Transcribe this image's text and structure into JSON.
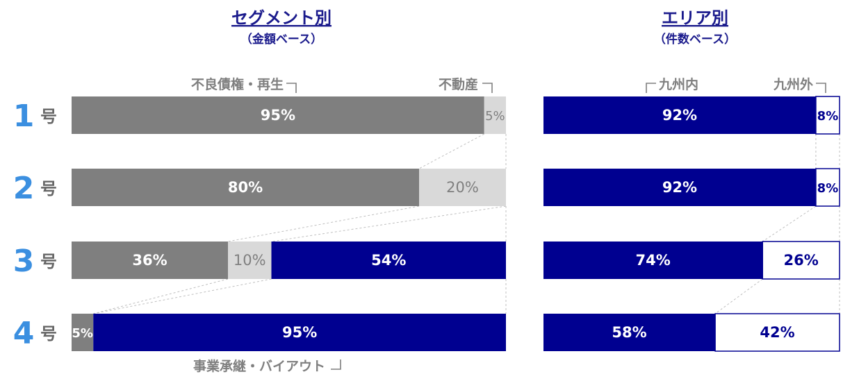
{
  "colors": {
    "gray_dark": "#7f7f7f",
    "gray_light": "#d9d9d9",
    "navy": "#000090",
    "white": "#ffffff",
    "row_label": "#3b8fe0",
    "axis_text": "#7f7f7f"
  },
  "row_suffix": "号",
  "chart_data": [
    {
      "type": "bar",
      "stacked": true,
      "orientation": "horizontal",
      "title": "セグメント別",
      "subtitle": "（金額ベース）",
      "categories": [
        "1",
        "2",
        "3",
        "4"
      ],
      "series": [
        {
          "name": "不良債権・再生",
          "values": [
            95,
            80,
            36,
            5
          ],
          "labels": [
            "95%",
            "80%",
            "36%",
            "5%"
          ]
        },
        {
          "name": "不動産",
          "values": [
            5,
            20,
            10,
            0
          ],
          "labels": [
            "5%",
            "20%",
            "10%",
            ""
          ]
        },
        {
          "name": "事業承継・バイアウト",
          "values": [
            0,
            0,
            54,
            95
          ],
          "labels": [
            "",
            "",
            "54%",
            "95%"
          ]
        }
      ],
      "xlim": [
        0,
        100
      ]
    },
    {
      "type": "bar",
      "stacked": true,
      "orientation": "horizontal",
      "title": "エリア別",
      "subtitle": "（件数ベース）",
      "categories": [
        "1",
        "2",
        "3",
        "4"
      ],
      "series": [
        {
          "name": "九州内",
          "values": [
            92,
            92,
            74,
            58
          ],
          "labels": [
            "92%",
            "92%",
            "74%",
            "58%"
          ]
        },
        {
          "name": "九州外",
          "values": [
            8,
            8,
            26,
            42
          ],
          "labels": [
            "8%",
            "8%",
            "26%",
            "42%"
          ]
        }
      ],
      "xlim": [
        0,
        100
      ]
    }
  ]
}
